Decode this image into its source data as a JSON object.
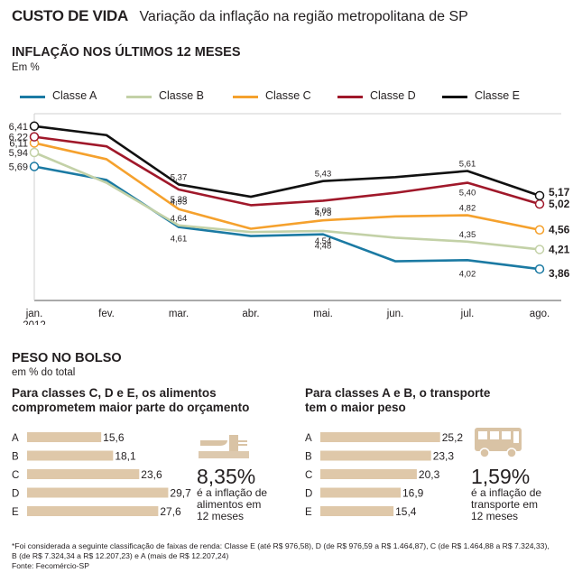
{
  "header": {
    "kicker": "CUSTO DE VIDA",
    "subtitle": "Variação da inflação na região metropolitana de SP"
  },
  "inflation": {
    "title": "INFLAÇÃO NOS ÚLTIMOS 12 MESES",
    "unit": "Em %"
  },
  "weight": {
    "title": "PESO NO BOLSO",
    "unit": "em % do total"
  },
  "food_panel": {
    "title_line1": "Para classes C, D e E, os alimentos",
    "title_line2": "comprometem maior parte do orçamento",
    "stat_value": "8,35%",
    "stat_text_line1": "é a inflação de",
    "stat_text_line2": "alimentos em",
    "stat_text_line3": "12 meses",
    "icon": "cutlery-icon"
  },
  "transport_panel": {
    "title_line1": "Para classes A e B, o transporte",
    "title_line2": "tem o maior peso",
    "stat_value": "1,59%",
    "stat_text_line1": "é a inflação de",
    "stat_text_line2": "transporte em",
    "stat_text_line3": "12 meses",
    "icon": "bus-icon"
  },
  "colors": {
    "class_a": "#1b7aa3",
    "class_b": "#c3d1a7",
    "class_c": "#f5a12d",
    "class_d": "#a0182a",
    "class_e": "#111111",
    "bar": "#dfc8a9",
    "icon": "#d9c3a5",
    "grid": "#cfcfcf"
  },
  "chart_data": [
    {
      "type": "line",
      "title": "INFLAÇÃO NOS ÚLTIMOS 12 MESES",
      "ylabel": "Em %",
      "categories": [
        "jan.",
        "fev.",
        "mar.",
        "abr.",
        "mai.",
        "jun.",
        "jul.",
        "ago."
      ],
      "category_sublabels": [
        "2012",
        "",
        "",
        "",
        "",
        "",
        "",
        ""
      ],
      "ylim": [
        3.3,
        6.6
      ],
      "legend_position": "top",
      "series": [
        {
          "name": "Classe A",
          "values": [
            5.69,
            5.45,
            4.61,
            4.45,
            4.48,
            4.0,
            4.02,
            3.86
          ],
          "labels": [
            "5,69",
            "",
            "4,61",
            "",
            "4,48",
            "",
            "4,02",
            "3,86"
          ]
        },
        {
          "name": "Classe B",
          "values": [
            5.94,
            5.4,
            4.64,
            4.52,
            4.54,
            4.42,
            4.35,
            4.21
          ],
          "labels": [
            "5,94",
            "",
            "4,64",
            "",
            "4,54",
            "",
            "4,35",
            "4,21"
          ]
        },
        {
          "name": "Classe C",
          "values": [
            6.11,
            5.82,
            4.93,
            4.58,
            4.73,
            4.8,
            4.82,
            4.56
          ],
          "labels": [
            "6,11",
            "",
            "4,93",
            "",
            "4,73",
            "",
            "4,82",
            "4,56"
          ]
        },
        {
          "name": "Classe D",
          "values": [
            6.22,
            6.05,
            5.28,
            5.0,
            5.08,
            5.22,
            5.4,
            5.02
          ],
          "labels": [
            "6,22",
            "",
            "5,28",
            "",
            "5,08",
            "",
            "5,40",
            "5,02"
          ]
        },
        {
          "name": "Classe E",
          "values": [
            6.41,
            6.25,
            5.37,
            5.15,
            5.43,
            5.5,
            5.61,
            5.17
          ],
          "labels": [
            "6,41",
            "",
            "5,37",
            "",
            "5,43",
            "",
            "5,61",
            "5,17"
          ]
        }
      ]
    },
    {
      "type": "bar",
      "title": "Para classes C, D e E, os alimentos comprometem maior parte do orçamento",
      "categories": [
        "A",
        "B",
        "C",
        "D",
        "E"
      ],
      "values": [
        15.6,
        18.1,
        23.6,
        29.7,
        27.6
      ],
      "labels": [
        "15,6",
        "18,1",
        "23,6",
        "29,7",
        "27,6"
      ],
      "xlim": [
        0,
        30
      ]
    },
    {
      "type": "bar",
      "title": "Para classes A e B, o transporte tem o maior peso",
      "categories": [
        "A",
        "B",
        "C",
        "D",
        "E"
      ],
      "values": [
        25.2,
        23.3,
        20.3,
        16.9,
        15.4
      ],
      "labels": [
        "25,2",
        "23,3",
        "20,3",
        "16,9",
        "15,4"
      ],
      "xlim": [
        0,
        30
      ]
    }
  ],
  "footnote": {
    "line1": "*Foi considerada a seguinte classificação de faixas de renda: Classe E (até R$ 976,58), D (de R$ 976,59 a R$ 1.464,87), C (de R$ 1.464,88 a R$ 7.324,33),",
    "line2": "B (de R$ 7.324,34 a R$ 12.207,23) e A (mais de R$ 12.207,24)",
    "source": "Fonte: Fecomércio-SP"
  }
}
